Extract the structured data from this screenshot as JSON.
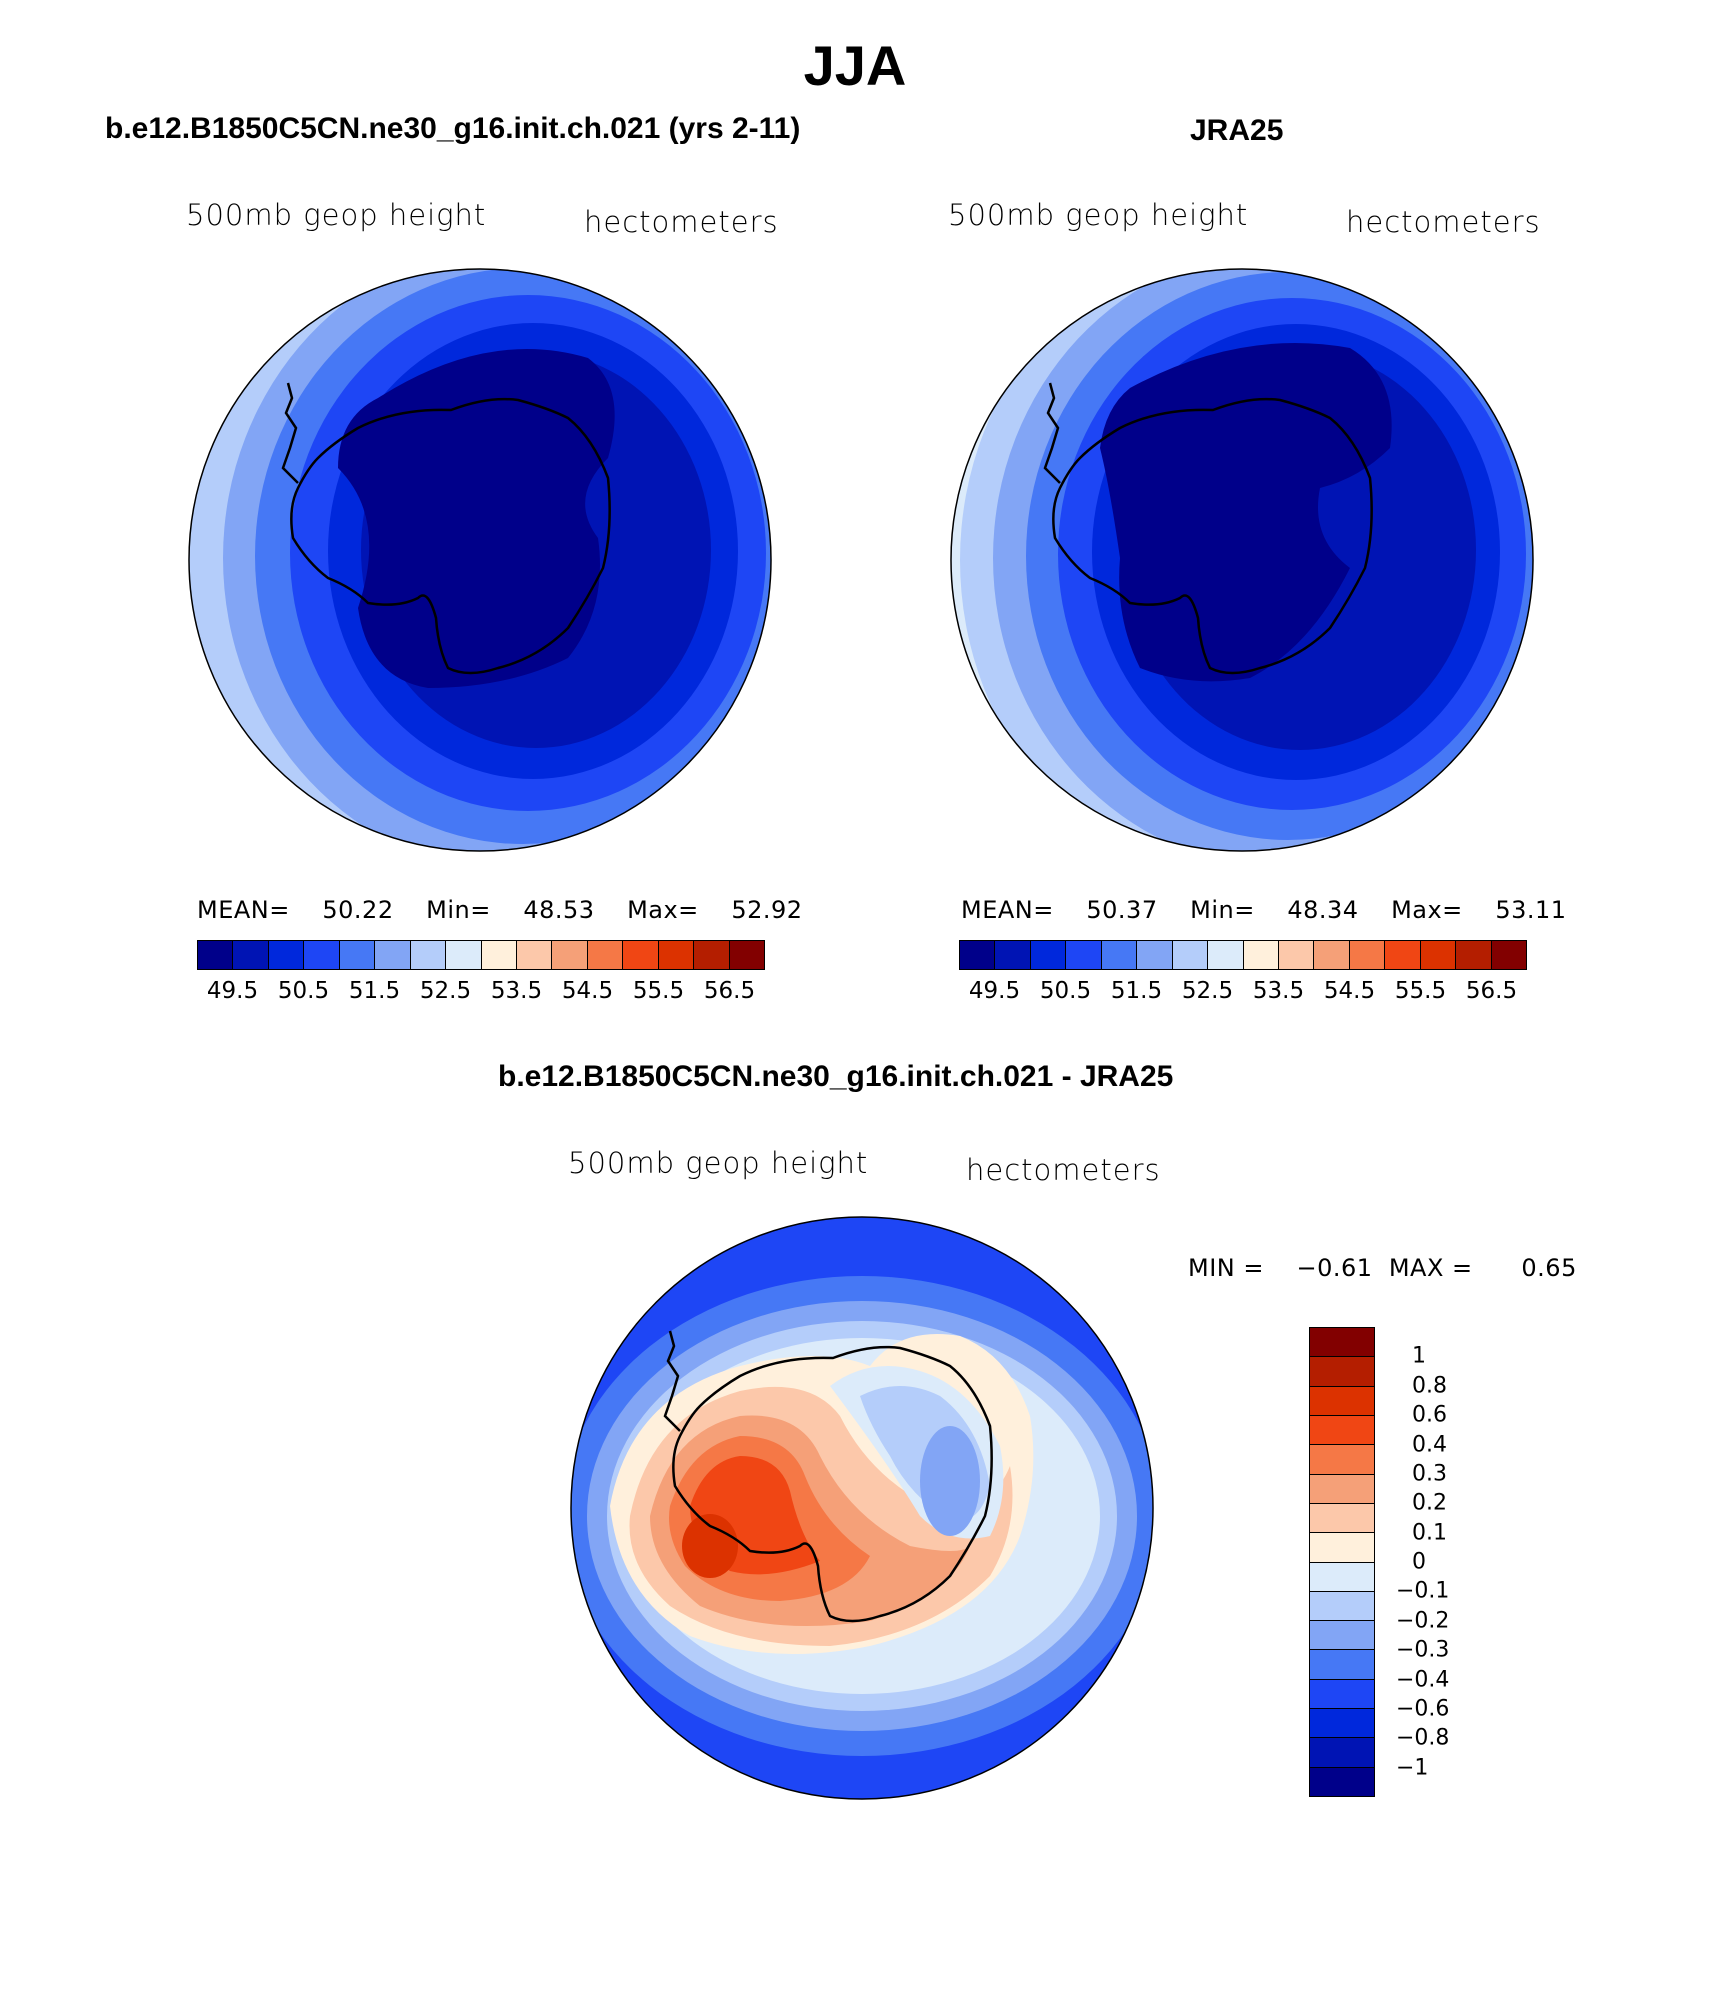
{
  "figure": {
    "title": "JJA",
    "panels": [
      {
        "title": "b.e12.B1850C5CN.ne30_g16.init.ch.021 (yrs 2-11)",
        "left_label": "500mb  geop  height",
        "right_label": "hectometers",
        "stats": {
          "mean_label": "MEAN=",
          "mean": "50.22",
          "min_label": "Min=",
          "min": "48.53",
          "max_label": "Max=",
          "max": "52.92"
        }
      },
      {
        "title": "JRA25",
        "left_label": "500mb  geop  height",
        "right_label": "hectometers",
        "stats": {
          "mean_label": "MEAN=",
          "mean": "50.37",
          "min_label": "Min=",
          "min": "48.34",
          "max_label": "Max=",
          "max": "53.11"
        }
      },
      {
        "title": "b.e12.B1850C5CN.ne30_g16.init.ch.021 - JRA25",
        "left_label": "500mb  geop  height",
        "right_label": "hectometers",
        "stats": {
          "min_label": "MIN =",
          "min": "−0.61",
          "max_label": "MAX =",
          "max": "0.65"
        }
      }
    ],
    "field_colorbar": {
      "colors": [
        "#00008a",
        "#0014b4",
        "#0028dc",
        "#1e46f5",
        "#4678f5",
        "#82a5f5",
        "#b4cdfa",
        "#dcebfa",
        "#fff0dc",
        "#fcc8aa",
        "#f5a078",
        "#f57846",
        "#f04614",
        "#dc3200",
        "#b41e00",
        "#820000"
      ],
      "tick_labels": [
        "49.5",
        "50.5",
        "51.5",
        "52.5",
        "53.5",
        "54.5",
        "55.5",
        "56.5"
      ]
    },
    "diff_colorbar": {
      "colors_top_to_bottom": [
        "#820000",
        "#b41e00",
        "#dc3200",
        "#f04614",
        "#f57846",
        "#f5a078",
        "#fcc8aa",
        "#fff0dc",
        "#dcebfa",
        "#b4cdfa",
        "#82a5f5",
        "#4678f5",
        "#1e46f5",
        "#0028dc",
        "#0014b4",
        "#00008a"
      ],
      "tick_labels": [
        "1",
        "0.8",
        "0.6",
        "0.4",
        "0.3",
        "0.2",
        "0.1",
        "0",
        "−0.1",
        "−0.2",
        "−0.3",
        "−0.4",
        "−0.6",
        "−0.8",
        "−1"
      ]
    }
  }
}
